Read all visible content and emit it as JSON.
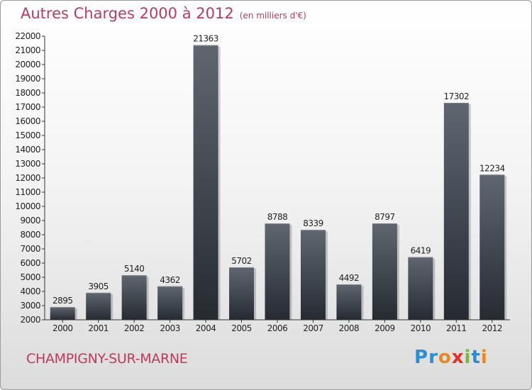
{
  "header": {
    "title": "Autres Charges 2000 à 2012",
    "subtitle": "(en milliers d'€)"
  },
  "footer": {
    "city": "CHAMPIGNY-SUR-MARNE",
    "logo": "Proxiti"
  },
  "colors": {
    "title": "#c0395c",
    "bar_top": "#5f6670",
    "bar_bottom": "#262b32",
    "axis": "#333333"
  },
  "chart_data": {
    "type": "bar",
    "title": "Autres Charges 2000 à 2012",
    "subtitle": "(en milliers d'€)",
    "xlabel": "",
    "ylabel": "",
    "categories": [
      "2000",
      "2001",
      "2002",
      "2003",
      "2004",
      "2005",
      "2006",
      "2007",
      "2008",
      "2009",
      "2010",
      "2011",
      "2012"
    ],
    "values": [
      2895,
      3905,
      5140,
      4362,
      21363,
      5702,
      8788,
      8339,
      4492,
      8797,
      6419,
      17302,
      12234
    ],
    "data_labels": [
      "2895",
      "3905",
      "5140",
      "4362",
      "21363",
      "5702",
      "8788",
      "8339",
      "4492",
      "8797",
      "6419",
      "17302",
      "12234"
    ],
    "ylim": [
      2000,
      22000
    ],
    "yticks": [
      2000,
      3000,
      4000,
      5000,
      6000,
      7000,
      8000,
      9000,
      10000,
      11000,
      12000,
      13000,
      14000,
      15000,
      16000,
      17000,
      18000,
      19000,
      20000,
      21000,
      22000
    ],
    "grid": false,
    "legend": "none"
  }
}
